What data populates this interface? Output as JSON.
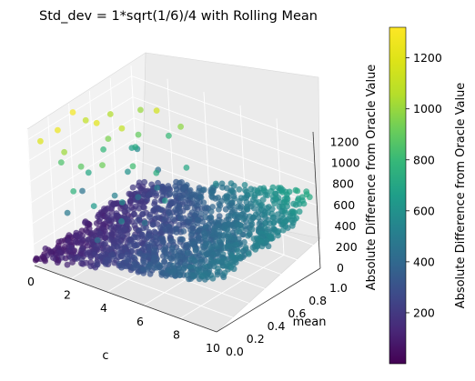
{
  "chart_data": {
    "type": "scatter",
    "title": "Std_dev = 1*sqrt(1/6)/4 with Rolling Mean",
    "xlabel": "c",
    "ylabel": "mean",
    "zlabel": "Absolute Difference from Oracle Value",
    "xlim": [
      0,
      10
    ],
    "ylim": [
      0,
      1.0
    ],
    "zlim": [
      0,
      1300
    ],
    "x_ticks": [
      0,
      2,
      4,
      6,
      8,
      10
    ],
    "y_ticks": [
      0.0,
      0.2,
      0.4,
      0.6,
      0.8,
      1.0
    ],
    "z_ticks": [
      0,
      200,
      400,
      600,
      800,
      1000,
      1200
    ],
    "x_tick_labels": [
      "0",
      "2",
      "4",
      "6",
      "8",
      "10"
    ],
    "y_tick_labels": [
      "0.0",
      "0.2",
      "0.4",
      "0.6",
      "0.8",
      "1.0"
    ],
    "z_tick_labels": [
      "0",
      "200",
      "400",
      "600",
      "800",
      "1000",
      "1200"
    ],
    "colorbar": {
      "label": "Absolute Difference from Oracle Value",
      "colormap": "viridis",
      "range": [
        0,
        1320
      ],
      "ticks": [
        200,
        400,
        600,
        800,
        1000,
        1200
      ],
      "tick_labels": [
        "200",
        "400",
        "600",
        "800",
        "1000",
        "1200"
      ]
    },
    "grid": true,
    "series": [
      {
        "points": [
          [
            0.4,
            0.05,
            1180
          ],
          [
            0.8,
            0.15,
            1250
          ],
          [
            0.5,
            0.35,
            1280
          ],
          [
            1.5,
            0.4,
            1210
          ],
          [
            0.3,
            0.5,
            1100
          ],
          [
            0.8,
            0.2,
            1010
          ],
          [
            1.2,
            0.55,
            950
          ],
          [
            0.5,
            0.7,
            1050
          ],
          [
            2.0,
            0.55,
            1100
          ],
          [
            1.4,
            0.25,
            880
          ],
          [
            0.3,
            0.25,
            850
          ],
          [
            1.7,
            0.75,
            900
          ],
          [
            1.0,
            0.9,
            1000
          ],
          [
            2.5,
            0.8,
            1150
          ],
          [
            2.3,
            0.3,
            920
          ],
          [
            0.6,
            0.6,
            780
          ],
          [
            1.8,
            0.1,
            760
          ],
          [
            2.8,
            0.5,
            820
          ],
          [
            0.9,
            0.4,
            700
          ],
          [
            3.2,
            0.9,
            980
          ],
          [
            1.2,
            0.8,
            720
          ],
          [
            2.2,
            0.95,
            800
          ],
          [
            3.5,
            0.6,
            740
          ],
          [
            0.7,
            0.85,
            650
          ],
          [
            2.6,
            0.15,
            640
          ],
          [
            1.6,
            0.65,
            600
          ],
          [
            3.0,
            0.35,
            580
          ],
          [
            4.0,
            0.8,
            700
          ],
          [
            0.4,
            0.95,
            560
          ],
          [
            2.0,
            0.45,
            520
          ],
          [
            3.8,
            0.2,
            540
          ],
          [
            1.1,
            0.15,
            480
          ],
          [
            2.9,
            0.7,
            500
          ],
          [
            4.5,
            0.5,
            600
          ],
          [
            0.2,
            0.45,
            450
          ],
          [
            5.0,
            0.9,
            550
          ],
          [
            1.5,
            0.95,
            430
          ],
          [
            3.3,
            0.05,
            420
          ],
          [
            4.2,
            0.35,
            460
          ],
          [
            2.4,
            0.6,
            440
          ]
        ],
        "surface": {
          "base_value_at_c0": 70,
          "slope_per_c": 42,
          "mean_effect": 120,
          "edge_rise": 150,
          "spread": 60
        }
      }
    ]
  }
}
